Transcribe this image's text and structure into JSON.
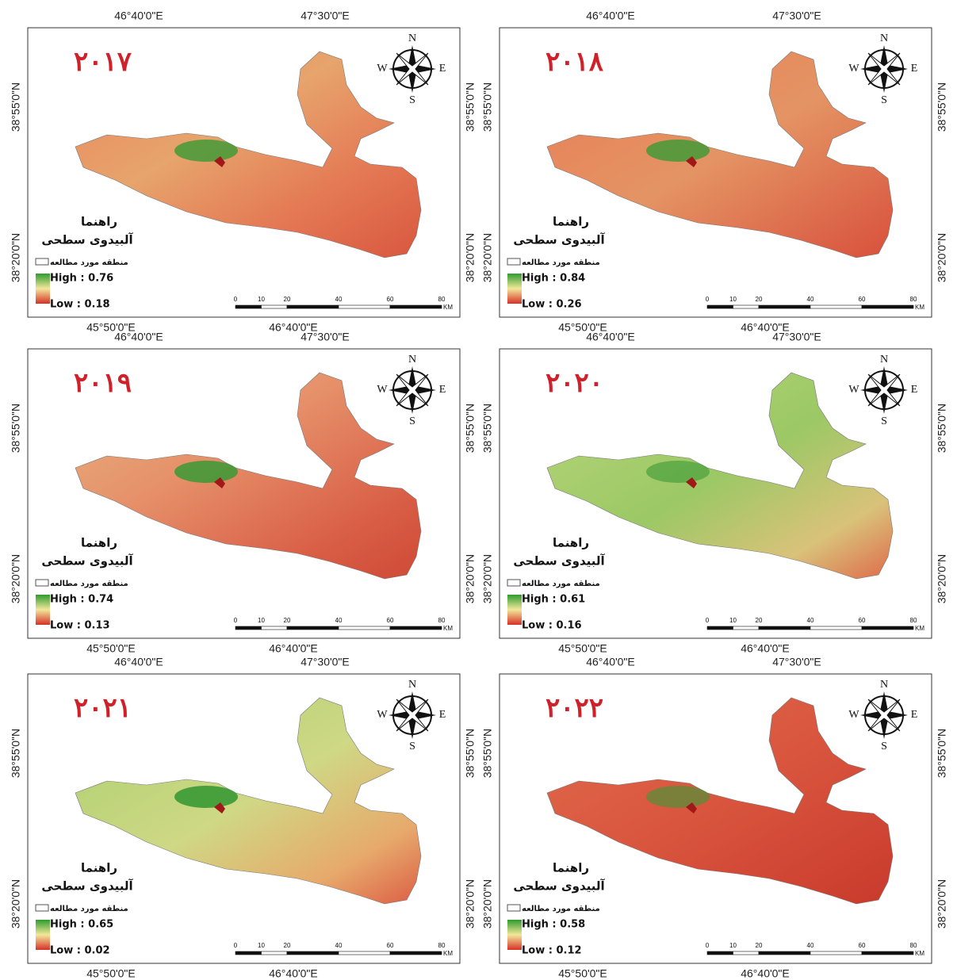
{
  "panels": [
    {
      "year": "۲۰۱۷",
      "high": "High : 0.76",
      "low": "Low : 0.18"
    },
    {
      "year": "۲۰۱۸",
      "high": "High : 0.84",
      "low": "Low : 0.26"
    },
    {
      "year": "۲۰۱۹",
      "high": "High : 0.74",
      "low": "Low : 0.13"
    },
    {
      "year": "۲۰۲۰",
      "high": "High : 0.61",
      "low": "Low : 0.16"
    },
    {
      "year": "۲۰۲۱",
      "high": "High : 0.65",
      "low": "Low : 0.02"
    },
    {
      "year": "۲۰۲۲",
      "high": "High : 0.58",
      "low": "Low : 0.12"
    }
  ],
  "common": {
    "legend_title": "راهنما",
    "legend_subtitle": "آلبیدوی سطحی",
    "study_area": "منطقه مورد مطالعه",
    "compass": {
      "n": "N",
      "s": "S",
      "e": "E",
      "w": "W"
    },
    "scale_labels": [
      "0",
      "10",
      "20",
      "40",
      "60",
      "80"
    ],
    "scale_unit": "KM",
    "top_coords": [
      "46°40'0\"E",
      "47°30'0\"E"
    ],
    "bottom_coords": [
      "45°50'0\"E",
      "46°40'0\"E"
    ],
    "side_coords": [
      "38°55'0\"N",
      "38°20'0\"N"
    ]
  }
}
